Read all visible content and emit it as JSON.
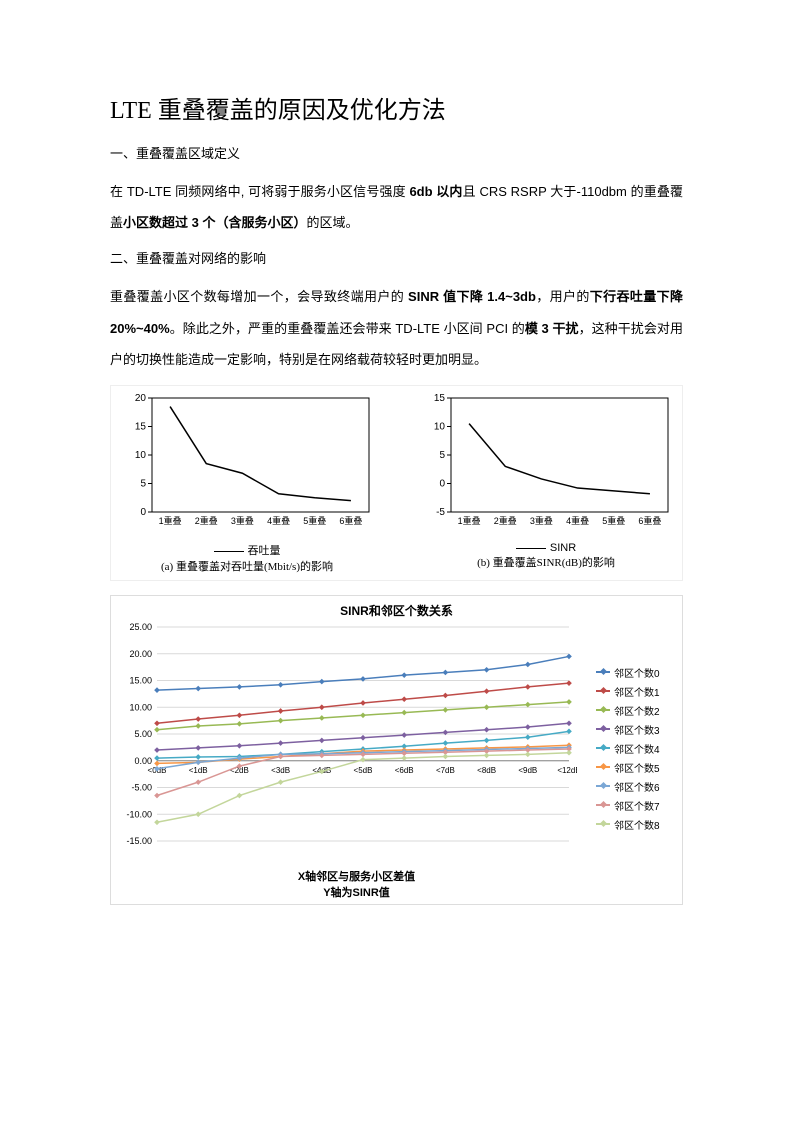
{
  "title": "LTE 重叠覆盖的原因及优化方法",
  "section1": "一、重叠覆盖区域定义",
  "para1": "在 TD-LTE 同频网络中, 可将弱于服务小区信号强度 6db 以内且 CRS RSRP 大于-110dbm 的重叠覆盖小区数超过 3 个（含服务小区）的区域。",
  "section2": "二、重叠覆盖对网络的影响",
  "para2": "重叠覆盖小区个数每增加一个，会导致终端用户的 SINR 值下降 1.4~3db，用户的下行吞吐量下降 20%~40%。除此之外，严重的重叠覆盖还会带来 TD-LTE 小区间 PCI 的模 3 干扰，这种干扰会对用户的切换性能造成一定影响，特别是在网络载荷较轻时更加明显。",
  "chart_a": {
    "type": "line",
    "ylim": [
      0,
      20
    ],
    "yticks": [
      0,
      5,
      10,
      15,
      20
    ],
    "xlabels": [
      "1重叠",
      "2重叠",
      "3重叠",
      "4重叠",
      "5重叠",
      "6重叠"
    ],
    "values": [
      18.5,
      8.5,
      6.8,
      3.2,
      2.5,
      2.0
    ],
    "line_color": "#000000",
    "bg": "#ffffff",
    "legend": "吞吐量",
    "caption": "(a) 重叠覆盖对吞吐量(Mbit/s)的影响"
  },
  "chart_b": {
    "type": "line",
    "ylim": [
      -5,
      15
    ],
    "yticks": [
      -5,
      0,
      5,
      10,
      15
    ],
    "xlabels": [
      "1重叠",
      "2重叠",
      "3重叠",
      "4重叠",
      "5重叠",
      "6重叠"
    ],
    "values": [
      10.5,
      3.0,
      0.8,
      -0.8,
      -1.3,
      -1.8
    ],
    "line_color": "#000000",
    "bg": "#ffffff",
    "legend": "SINR",
    "caption": "(b) 重叠覆盖SINR(dB)的影响"
  },
  "big_chart": {
    "type": "line",
    "title": "SINR和邻区个数关系",
    "xlabel": "X轴邻区与服务小区差值",
    "ylabel": "Y轴为SINR值",
    "ylim": [
      -15,
      25
    ],
    "yticks": [
      -15,
      -10,
      -5,
      0,
      5,
      10,
      15,
      20,
      25
    ],
    "xlabels": [
      "<0dB",
      "<1dB",
      "<2dB",
      "<3dB",
      "<4dB",
      "<5dB",
      "<6dB",
      "<7dB",
      "<8dB",
      "<9dB",
      "<12dB"
    ],
    "series": [
      {
        "name": "邻区个数0",
        "color": "#4a7ebb",
        "values": [
          13.2,
          13.5,
          13.8,
          14.2,
          14.8,
          15.3,
          16.0,
          16.5,
          17.0,
          18.0,
          19.5
        ]
      },
      {
        "name": "邻区个数1",
        "color": "#be4b48",
        "values": [
          7.0,
          7.8,
          8.5,
          9.3,
          10.0,
          10.8,
          11.5,
          12.2,
          13.0,
          13.8,
          14.5
        ]
      },
      {
        "name": "邻区个数2",
        "color": "#98b954",
        "values": [
          5.8,
          6.5,
          6.9,
          7.5,
          8.0,
          8.5,
          9.0,
          9.5,
          10.0,
          10.5,
          11.0
        ]
      },
      {
        "name": "邻区个数3",
        "color": "#7d60a0",
        "values": [
          2.0,
          2.4,
          2.8,
          3.3,
          3.8,
          4.3,
          4.8,
          5.3,
          5.8,
          6.3,
          7.0
        ]
      },
      {
        "name": "邻区个数4",
        "color": "#46aac5",
        "values": [
          0.5,
          0.7,
          0.8,
          1.2,
          1.7,
          2.2,
          2.7,
          3.3,
          3.8,
          4.4,
          5.5
        ]
      },
      {
        "name": "邻区个数5",
        "color": "#f79646",
        "values": [
          -0.5,
          -0.3,
          0.3,
          0.8,
          1.3,
          1.8,
          2.0,
          2.2,
          2.4,
          2.6,
          2.9
        ]
      },
      {
        "name": "邻区个数6",
        "color": "#7ba7d5",
        "values": [
          -1.5,
          -0.3,
          0.5,
          1.2,
          1.3,
          1.5,
          1.7,
          1.9,
          2.1,
          2.3,
          2.5
        ]
      },
      {
        "name": "邻区个数7",
        "color": "#d99694",
        "values": [
          -6.5,
          -4.0,
          -1.0,
          0.8,
          1.0,
          1.2,
          1.4,
          1.6,
          1.8,
          2.0,
          2.2
        ]
      },
      {
        "name": "邻区个数8",
        "color": "#c3d69b",
        "values": [
          -11.5,
          -10.0,
          -6.5,
          -4.0,
          -2.0,
          0.2,
          0.5,
          0.8,
          1.0,
          1.2,
          1.5
        ]
      }
    ],
    "grid_color": "#d9d9d9",
    "bg": "#ffffff"
  }
}
